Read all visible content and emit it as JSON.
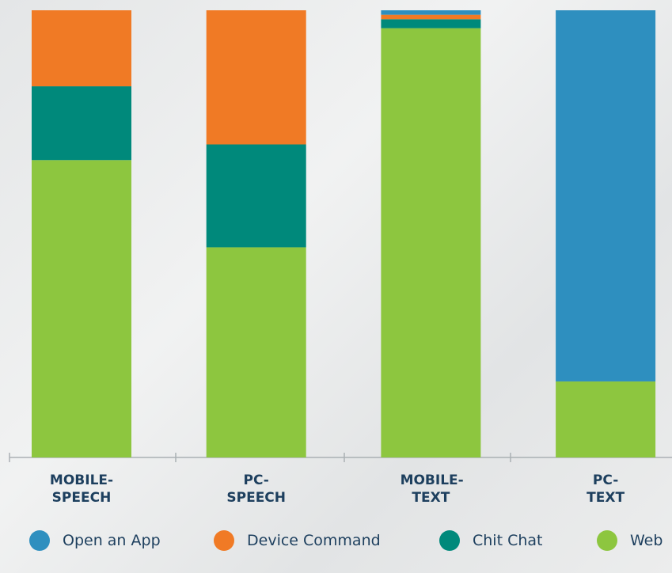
{
  "chart_data": {
    "type": "stacked-bar",
    "categories": [
      "MOBILE-SPEECH",
      "PC-SPEECH",
      "MOBILE-TEXT",
      "PC-TEXT"
    ],
    "series": [
      {
        "name": "Open an App",
        "color": "#2e8fbf",
        "values": [
          0,
          0,
          1,
          83
        ]
      },
      {
        "name": "Device Command",
        "color": "#f07a25",
        "values": [
          17,
          30,
          1,
          0
        ]
      },
      {
        "name": "Chit Chat",
        "color": "#00897b",
        "values": [
          16.5,
          23,
          2,
          0
        ]
      },
      {
        "name": "Web",
        "color": "#8dc63f",
        "values": [
          66.5,
          47,
          96,
          17
        ]
      }
    ]
  }
}
